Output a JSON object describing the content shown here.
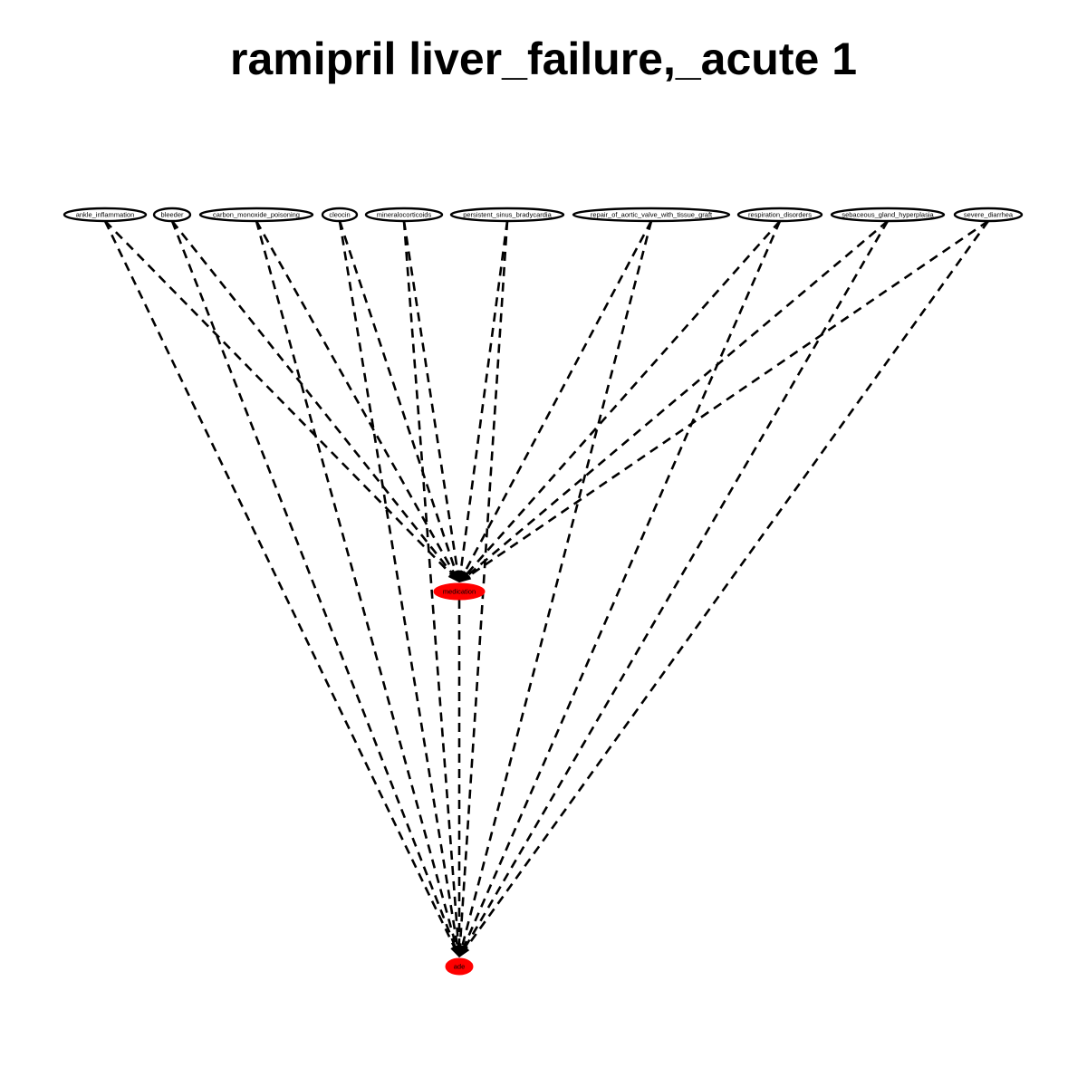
{
  "title": "ramipril liver_failure,_acute 1",
  "colors": {
    "edge": "#000000",
    "highlight_node": "#ff0000",
    "node_fill": "#ffffff"
  },
  "nodes": [
    {
      "id": "ankle_inflammation",
      "label": "ankle_inflammation",
      "highlight": false
    },
    {
      "id": "bleeder",
      "label": "bleeder",
      "highlight": false
    },
    {
      "id": "carbon_monoxide_poisoning",
      "label": "carbon_monoxide_poisoning",
      "highlight": false
    },
    {
      "id": "cleocin",
      "label": "cleocin",
      "highlight": false
    },
    {
      "id": "mineralocorticoids",
      "label": "mineralocorticoids",
      "highlight": false
    },
    {
      "id": "persistent_sinus_bradycardia",
      "label": "persistent_sinus_bradycardia",
      "highlight": false
    },
    {
      "id": "repair_of_aortic_valve_with_tissue_graft",
      "label": "repair_of_aortic_valve_with_tissue_graft",
      "highlight": false
    },
    {
      "id": "respiration_disorders",
      "label": "respiration_disorders",
      "highlight": false
    },
    {
      "id": "sebaceous_gland_hyperplasia",
      "label": "sebaceous_gland_hyperplasia",
      "highlight": false
    },
    {
      "id": "severe_diarrhea",
      "label": "severe_diarrhea",
      "highlight": false
    },
    {
      "id": "medication",
      "label": "medication",
      "highlight": true
    },
    {
      "id": "ade",
      "label": "ade",
      "highlight": true
    }
  ],
  "edges": [
    {
      "from": "ankle_inflammation",
      "to": "medication",
      "style": "dashed"
    },
    {
      "from": "ankle_inflammation",
      "to": "ade",
      "style": "dashed"
    },
    {
      "from": "bleeder",
      "to": "medication",
      "style": "dashed"
    },
    {
      "from": "bleeder",
      "to": "ade",
      "style": "dashed"
    },
    {
      "from": "carbon_monoxide_poisoning",
      "to": "medication",
      "style": "dashed"
    },
    {
      "from": "carbon_monoxide_poisoning",
      "to": "ade",
      "style": "dashed"
    },
    {
      "from": "cleocin",
      "to": "medication",
      "style": "dashed"
    },
    {
      "from": "cleocin",
      "to": "ade",
      "style": "dashed"
    },
    {
      "from": "mineralocorticoids",
      "to": "medication",
      "style": "dashed"
    },
    {
      "from": "mineralocorticoids",
      "to": "ade",
      "style": "dashed"
    },
    {
      "from": "persistent_sinus_bradycardia",
      "to": "medication",
      "style": "dashed"
    },
    {
      "from": "persistent_sinus_bradycardia",
      "to": "ade",
      "style": "dashed"
    },
    {
      "from": "repair_of_aortic_valve_with_tissue_graft",
      "to": "medication",
      "style": "dashed"
    },
    {
      "from": "repair_of_aortic_valve_with_tissue_graft",
      "to": "ade",
      "style": "dashed"
    },
    {
      "from": "respiration_disorders",
      "to": "medication",
      "style": "dashed"
    },
    {
      "from": "respiration_disorders",
      "to": "ade",
      "style": "dashed"
    },
    {
      "from": "sebaceous_gland_hyperplasia",
      "to": "medication",
      "style": "dashed"
    },
    {
      "from": "sebaceous_gland_hyperplasia",
      "to": "ade",
      "style": "dashed"
    },
    {
      "from": "severe_diarrhea",
      "to": "medication",
      "style": "dashed"
    },
    {
      "from": "severe_diarrhea",
      "to": "ade",
      "style": "dashed"
    },
    {
      "from": "medication",
      "to": "ade",
      "style": "dashed"
    }
  ]
}
